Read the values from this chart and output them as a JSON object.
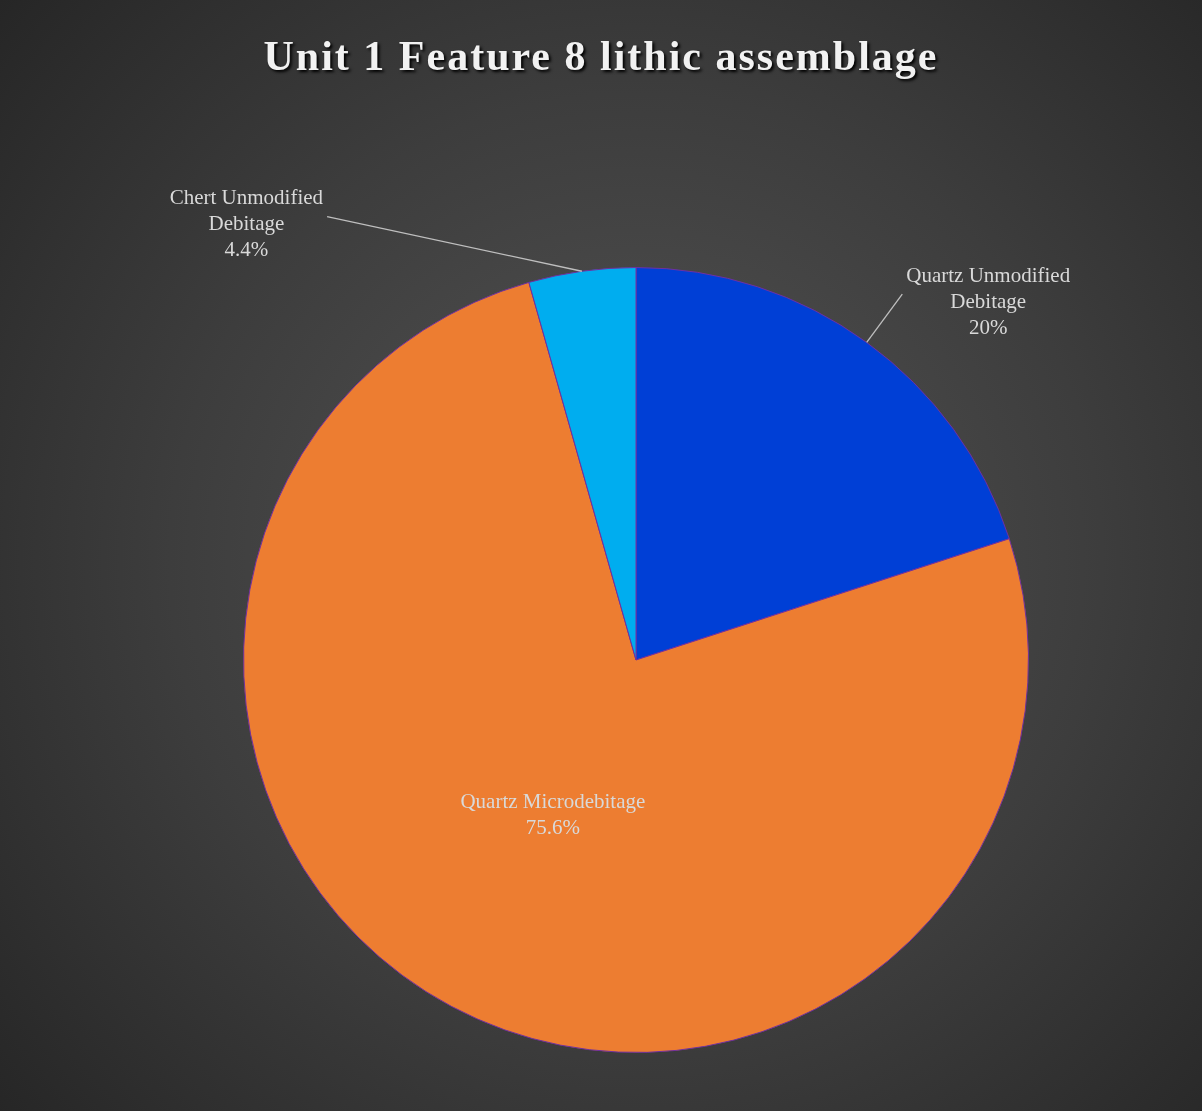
{
  "chart_data": {
    "type": "pie",
    "title": "Unit 1 Feature 8 lithic assemblage",
    "categories": [
      "Quartz Unmodified Debitage",
      "Quartz Microdebitage",
      "Chert Unmodified Debitage"
    ],
    "values": [
      20,
      75.6,
      4.4
    ],
    "colors": [
      "#003fd6",
      "#ed7d31",
      "#00adef"
    ],
    "value_labels": [
      "20%",
      "75.6%",
      "4.4%"
    ],
    "legend": false
  }
}
